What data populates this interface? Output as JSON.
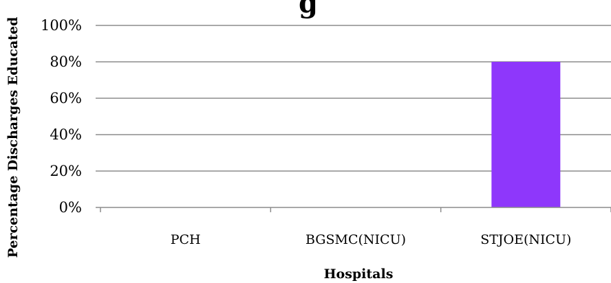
{
  "chart_data": {
    "type": "bar",
    "title": "g",
    "xlabel": "Hospitals",
    "ylabel": "Percentage Discharges Educated",
    "categories": [
      "PCH",
      "BGSMC(NICU)",
      "STJOE(NICU)"
    ],
    "values": [
      0,
      0,
      0.8
    ],
    "ylim": [
      0,
      1
    ],
    "y_ticks": [
      0,
      0.2,
      0.4,
      0.6,
      0.8,
      1.0
    ],
    "y_tick_labels": [
      "0%",
      "20%",
      "40%",
      "60%",
      "80%",
      "100%"
    ],
    "grid": true,
    "legend": "none",
    "bar_color": "#8e37fb",
    "grid_color": "#8c8c8c",
    "axis_color": "#8c8c8c"
  }
}
